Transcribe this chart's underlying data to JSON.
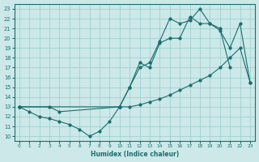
{
  "xlabel": "Humidex (Indice chaleur)",
  "xlim": [
    -0.5,
    23.5
  ],
  "ylim": [
    9.5,
    23.5
  ],
  "yticks": [
    10,
    11,
    12,
    13,
    14,
    15,
    16,
    17,
    18,
    19,
    20,
    21,
    22,
    23
  ],
  "xticks": [
    0,
    1,
    2,
    3,
    4,
    5,
    6,
    7,
    8,
    9,
    10,
    11,
    12,
    13,
    14,
    15,
    16,
    17,
    18,
    19,
    20,
    21,
    22,
    23
  ],
  "bg_color": "#cce8e8",
  "grid_color": "#99cccc",
  "line_color": "#1a6e6e",
  "line1_x": [
    0,
    1,
    2,
    3,
    4,
    5,
    6,
    7,
    8,
    9,
    10,
    11,
    12,
    13,
    14,
    15,
    16,
    17,
    18,
    19,
    20,
    21,
    22,
    23
  ],
  "line1_y": [
    13,
    12.5,
    12,
    11.8,
    11.5,
    11.2,
    10.7,
    10.0,
    10.5,
    11.5,
    13.0,
    13.0,
    13.2,
    13.5,
    13.8,
    14.2,
    14.7,
    15.2,
    15.7,
    16.2,
    17.0,
    18.0,
    19.0,
    15.5
  ],
  "line2_x": [
    0,
    3,
    4,
    10,
    11,
    12,
    13,
    14,
    15,
    16,
    17,
    18,
    19,
    20,
    21
  ],
  "line2_y": [
    13,
    13,
    12.5,
    13.0,
    15.0,
    17.5,
    17.0,
    19.5,
    20.0,
    20.0,
    22.2,
    21.5,
    21.5,
    21.0,
    17.0
  ],
  "line3_x": [
    0,
    10,
    11,
    12,
    13,
    14,
    15,
    16,
    17,
    18,
    19,
    20,
    21,
    22,
    23
  ],
  "line3_y": [
    13,
    13.0,
    15.0,
    17.0,
    17.5,
    19.7,
    22.0,
    21.5,
    21.8,
    23.0,
    21.5,
    20.8,
    19.0,
    21.5,
    15.5
  ]
}
